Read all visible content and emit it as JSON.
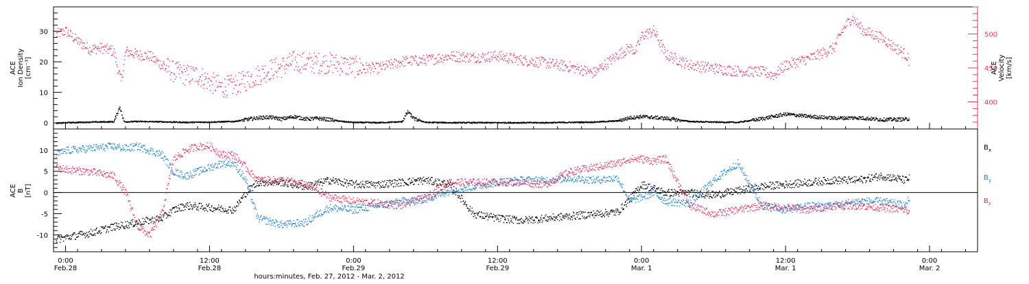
{
  "figure": {
    "xlabel": "hours:minutes, Feb. 27, 2012 - Mar. 2, 2012",
    "time_ticks": [
      {
        "t": 0,
        "time": "0:00",
        "date": "Feb.28"
      },
      {
        "t": 12,
        "time": "12:00",
        "date": "Feb.28"
      },
      {
        "t": 24,
        "time": "0:00",
        "date": "Feb.29"
      },
      {
        "t": 36,
        "time": "12:00",
        "date": "Feb.29"
      },
      {
        "t": 48,
        "time": "0:00",
        "date": "Mar. 1"
      },
      {
        "t": 60,
        "time": "12:00",
        "date": "Mar. 1"
      },
      {
        "t": 72,
        "time": "0:00",
        "date": "Mar. 2"
      }
    ]
  },
  "colors": {
    "velocity": "#e8345e",
    "bx": "#000000",
    "by": "#1e82d8",
    "bz": "#e8345e"
  },
  "chart_data": [
    {
      "type": "scatter",
      "panel": "plasma",
      "ylabel_left": [
        "ACE",
        "Ion Density",
        "[cm⁻³]"
      ],
      "ylabel_right": [
        "ACE",
        "Velocity",
        "[km/s]"
      ],
      "xlim_hours": [
        -1,
        76
      ],
      "ylim_left": [
        -2,
        38
      ],
      "yticks_left": [
        0,
        10,
        20,
        30
      ],
      "ylim_right": [
        360,
        540
      ],
      "yticks_right": [
        400,
        450,
        500
      ],
      "series": [
        {
          "key": "density",
          "x": [
            -0.8,
            0,
            2,
            4,
            4.5,
            4.8,
            5,
            6,
            8,
            10,
            12,
            14,
            15,
            16,
            17,
            18,
            19,
            20,
            21,
            22,
            23,
            24,
            26,
            28,
            28.5,
            29,
            30,
            32,
            34,
            36,
            38,
            40,
            42,
            44,
            46,
            47,
            48,
            50,
            52,
            54,
            56,
            58,
            60,
            62,
            64,
            66,
            68,
            70,
            70.3
          ],
          "y": [
            0,
            0.2,
            0.4,
            0.5,
            5.5,
            0.8,
            0.5,
            0.6,
            0.5,
            0.3,
            0.4,
            0.6,
            1.2,
            1.8,
            2.0,
            1.4,
            2.2,
            1.4,
            1.6,
            1.2,
            0.6,
            0.3,
            0.2,
            0.5,
            3.8,
            1.5,
            0.3,
            0.2,
            0.2,
            0.2,
            0.2,
            0.2,
            0.3,
            0.4,
            0.8,
            1.8,
            2.2,
            1.6,
            0.6,
            0.4,
            0.3,
            1.5,
            3.0,
            2.2,
            1.7,
            1.8,
            1.2,
            1.3,
            1.5
          ]
        },
        {
          "key": "velocity",
          "x": [
            -0.8,
            0,
            1,
            2,
            3,
            4,
            4.6,
            5,
            6,
            7,
            8,
            9,
            10,
            11,
            12,
            13,
            14,
            15,
            16,
            17,
            18,
            19,
            20,
            22,
            24,
            26,
            27,
            28,
            30,
            32,
            34,
            36,
            38,
            40,
            42,
            43,
            44,
            46,
            47,
            47.5,
            48,
            49,
            50,
            52,
            54,
            56,
            58,
            59,
            60,
            62,
            63,
            64,
            64.8,
            65.5,
            66.5,
            68,
            69,
            70,
            70.3
          ],
          "y": [
            500,
            505,
            490,
            478,
            480,
            475,
            430,
            475,
            470,
            468,
            455,
            445,
            440,
            440,
            430,
            422,
            425,
            432,
            440,
            448,
            452,
            460,
            458,
            458,
            452,
            450,
            455,
            460,
            462,
            468,
            466,
            468,
            462,
            458,
            452,
            448,
            443,
            470,
            480,
            475,
            498,
            505,
            470,
            455,
            450,
            446,
            445,
            440,
            455,
            465,
            472,
            480,
            508,
            525,
            505,
            495,
            482,
            470,
            460
          ]
        }
      ]
    },
    {
      "type": "scatter",
      "panel": "magnetic",
      "ylabel_left": [
        "ACE",
        "B",
        "[nT]"
      ],
      "xlim_hours": [
        -1,
        76
      ],
      "ylim": [
        -14,
        15
      ],
      "yticks": [
        -10,
        -5,
        0,
        5,
        10
      ],
      "zero_line": true,
      "legend_position": "right",
      "series": [
        {
          "key": "bx",
          "name": "Bx",
          "x": [
            -0.8,
            0,
            2,
            4,
            6,
            8,
            9,
            10,
            12,
            14,
            15,
            16,
            18,
            20,
            22,
            24,
            26,
            28,
            30,
            32,
            34,
            36,
            38,
            40,
            42,
            44,
            46,
            47,
            48,
            49,
            50,
            52,
            54,
            56,
            58,
            60,
            62,
            64,
            66,
            68,
            70,
            70.3
          ],
          "y": [
            -11,
            -10.5,
            -9.5,
            -8,
            -7,
            -6,
            -4,
            -3,
            -3.5,
            -4,
            0,
            2.5,
            2.5,
            1.5,
            3,
            2,
            2,
            2.5,
            3,
            2,
            -5,
            -6,
            -6.5,
            -6,
            -5.5,
            -5,
            -4.5,
            -1.5,
            2,
            1,
            0,
            0,
            -0.5,
            0.5,
            1.5,
            2,
            2.5,
            3,
            3,
            4,
            3,
            3.5
          ]
        },
        {
          "key": "by",
          "name": "By",
          "x": [
            -0.8,
            0,
            2,
            4,
            5,
            6,
            7,
            8,
            9,
            10,
            11,
            12,
            13,
            14,
            15,
            16,
            18,
            20,
            21,
            22,
            24,
            26,
            28,
            30,
            32,
            34,
            36,
            38,
            40,
            42,
            44,
            46,
            47,
            48,
            49,
            50,
            52,
            54,
            56,
            58,
            60,
            62,
            64,
            66,
            68,
            70,
            70.3
          ],
          "y": [
            9,
            10,
            10.5,
            11,
            10.5,
            11,
            10,
            9,
            5,
            4,
            5,
            6,
            7,
            7,
            3,
            -6,
            -7.5,
            -7,
            -5,
            -3.5,
            -4,
            -3,
            -2,
            -1.5,
            0.5,
            1.5,
            2.5,
            3,
            3,
            3.5,
            3,
            3.5,
            -2,
            -1,
            0,
            -2,
            -2.5,
            3,
            7,
            -3,
            -4,
            -3,
            -3,
            -2,
            -2,
            -3,
            -1
          ]
        },
        {
          "key": "bz",
          "name": "Bz",
          "x": [
            -0.8,
            0,
            2,
            4,
            5,
            6,
            7,
            8,
            9,
            10,
            11,
            12,
            13,
            14,
            15,
            16,
            18,
            20,
            22,
            24,
            26,
            28,
            30,
            32,
            34,
            36,
            38,
            40,
            42,
            44,
            46,
            47,
            48,
            49,
            50,
            52,
            54,
            56,
            58,
            60,
            62,
            64,
            66,
            68,
            70,
            70.3
          ],
          "y": [
            6,
            5.5,
            5,
            4,
            0,
            -8,
            -10,
            -5,
            8,
            10,
            11,
            11,
            9,
            9,
            6,
            3,
            3,
            2,
            -1,
            -2,
            -2.5,
            -3,
            -1,
            2.5,
            2.5,
            2.5,
            2.5,
            2,
            5,
            6,
            7,
            8,
            8,
            7.5,
            8,
            -3,
            -5,
            -4,
            -3,
            -3.5,
            -4,
            -3,
            -3,
            -3.5,
            -4,
            -5
          ]
        }
      ]
    }
  ]
}
